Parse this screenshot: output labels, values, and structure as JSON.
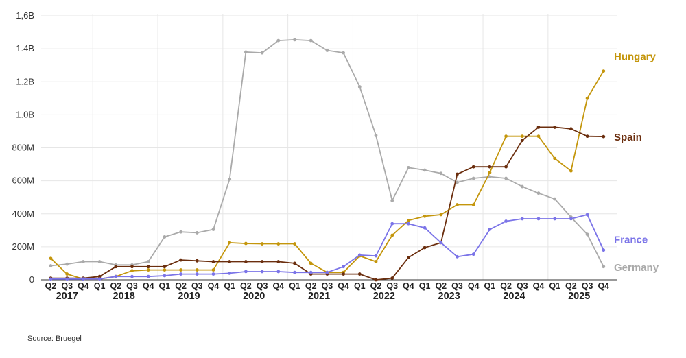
{
  "chart_data": {
    "type": "line",
    "y_tick_labels": [
      "0",
      "200M",
      "400M",
      "600M",
      "800M",
      "1.0B",
      "1.2B",
      "1.4B",
      "1,6B"
    ],
    "ylim": [
      0,
      1600000000
    ],
    "quarters": [
      "Q2",
      "Q3",
      "Q4",
      "Q1",
      "Q2",
      "Q3",
      "Q4",
      "Q1",
      "Q2",
      "Q3",
      "Q4",
      "Q1",
      "Q2",
      "Q3",
      "Q4",
      "Q1",
      "Q2",
      "Q3",
      "Q4",
      "Q1",
      "Q2",
      "Q3",
      "Q4",
      "Q1",
      "Q2",
      "Q3",
      "Q4",
      "Q1",
      "Q2",
      "Q3",
      "Q4",
      "Q1",
      "Q2",
      "Q3",
      "Q4"
    ],
    "years": [
      {
        "label": "2017",
        "first": 0,
        "last": 2
      },
      {
        "label": "2018",
        "first": 3,
        "last": 6
      },
      {
        "label": "2019",
        "first": 7,
        "last": 10
      },
      {
        "label": "2020",
        "first": 11,
        "last": 14
      },
      {
        "label": "2021",
        "first": 15,
        "last": 18
      },
      {
        "label": "2022",
        "first": 19,
        "last": 22
      },
      {
        "label": "2023",
        "first": 23,
        "last": 26
      },
      {
        "label": "2024",
        "first": 27,
        "last": 30
      },
      {
        "label": "2025",
        "first": 31,
        "last": 34
      }
    ],
    "series": [
      {
        "name": "Germany",
        "color": "#aaaaaa",
        "values": [
          85000000,
          95000000,
          110000000,
          110000000,
          90000000,
          90000000,
          110000000,
          260000000,
          290000000,
          285000000,
          305000000,
          610000000,
          1380000000,
          1375000000,
          1450000000,
          1455000000,
          1450000000,
          1390000000,
          1375000000,
          1170000000,
          875000000,
          480000000,
          680000000,
          665000000,
          645000000,
          590000000,
          615000000,
          625000000,
          615000000,
          565000000,
          525000000,
          490000000,
          380000000,
          275000000,
          80000000
        ]
      },
      {
        "name": "Hungary",
        "color": "#c4960c",
        "values": [
          130000000,
          35000000,
          5000000,
          5000000,
          20000000,
          55000000,
          60000000,
          60000000,
          60000000,
          60000000,
          60000000,
          225000000,
          220000000,
          218000000,
          218000000,
          218000000,
          100000000,
          45000000,
          45000000,
          145000000,
          110000000,
          270000000,
          360000000,
          385000000,
          395000000,
          455000000,
          455000000,
          650000000,
          870000000,
          870000000,
          870000000,
          735000000,
          660000000,
          1100000000,
          1265000000
        ]
      },
      {
        "name": "Spain",
        "color": "#6b2e0e",
        "values": [
          10000000,
          10000000,
          10000000,
          20000000,
          80000000,
          80000000,
          80000000,
          80000000,
          120000000,
          115000000,
          110000000,
          110000000,
          110000000,
          110000000,
          110000000,
          100000000,
          35000000,
          35000000,
          35000000,
          35000000,
          0,
          10000000,
          135000000,
          195000000,
          225000000,
          640000000,
          685000000,
          685000000,
          685000000,
          845000000,
          925000000,
          925000000,
          915000000,
          870000000,
          868000000
        ]
      },
      {
        "name": "France",
        "color": "#7b74e8",
        "values": [
          5000000,
          5000000,
          5000000,
          5000000,
          20000000,
          20000000,
          20000000,
          25000000,
          35000000,
          35000000,
          35000000,
          40000000,
          50000000,
          50000000,
          50000000,
          45000000,
          45000000,
          45000000,
          80000000,
          150000000,
          145000000,
          340000000,
          340000000,
          315000000,
          225000000,
          140000000,
          155000000,
          305000000,
          355000000,
          370000000,
          370000000,
          370000000,
          370000000,
          395000000,
          180000000
        ]
      }
    ]
  },
  "source": "Source: Bruegel"
}
